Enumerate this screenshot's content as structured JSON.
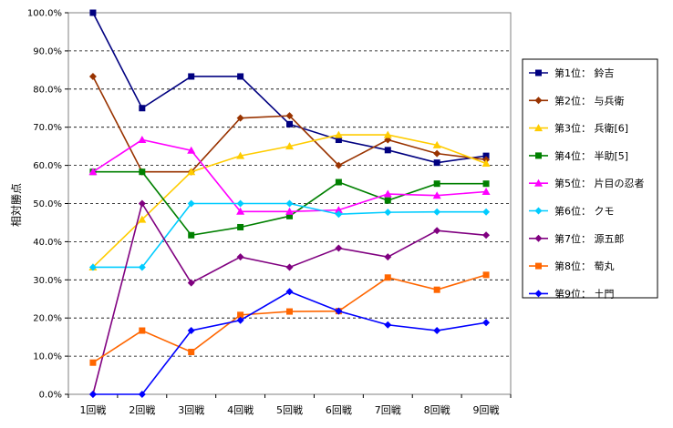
{
  "chart_data": {
    "type": "line",
    "ylabel": "相対勝点",
    "xlabel": "",
    "ylim": [
      0,
      100
    ],
    "y_ticks": [
      "0.0%",
      "10.0%",
      "20.0%",
      "30.0%",
      "40.0%",
      "50.0%",
      "60.0%",
      "70.0%",
      "80.0%",
      "90.0%",
      "100.0%"
    ],
    "categories": [
      "1回戦",
      "2回戦",
      "3回戦",
      "4回戦",
      "5回戦",
      "6回戦",
      "7回戦",
      "8回戦",
      "9回戦"
    ],
    "grid": "horizontal dashed",
    "legend_position": "right",
    "series": [
      {
        "name": "第1位： 鈴吉",
        "color": "#000080",
        "marker": "square",
        "values": [
          100,
          75,
          83.3,
          83.3,
          70.8,
          66.7,
          64,
          60.7,
          62.5
        ]
      },
      {
        "name": "第2位： 与兵衛",
        "color": "#993300",
        "marker": "diamond",
        "values": [
          83.3,
          58.3,
          58.3,
          72.4,
          73,
          60,
          66.7,
          63.1,
          61.5
        ]
      },
      {
        "name": "第3位： 兵衛[6]",
        "color": "#ffcc00",
        "marker": "triangle",
        "values": [
          33.3,
          45.8,
          58.3,
          62.5,
          65,
          68,
          68,
          65.3,
          60.5
        ]
      },
      {
        "name": "第4位： 半助[5]",
        "color": "#008000",
        "marker": "square",
        "values": [
          58.3,
          58.3,
          41.7,
          43.8,
          46.7,
          55.6,
          50.8,
          55.2,
          55.2
        ]
      },
      {
        "name": "第5位： 片目の忍者",
        "color": "#ff00ff",
        "marker": "triangle",
        "values": [
          58.3,
          66.7,
          63.9,
          47.9,
          47.9,
          48.3,
          52.5,
          52.1,
          53.1
        ]
      },
      {
        "name": "第6位： クモ",
        "color": "#00ccff",
        "marker": "diamond",
        "values": [
          33.3,
          33.3,
          50,
          50,
          50,
          47.2,
          47.7,
          47.8,
          47.8
        ]
      },
      {
        "name": "第7位： 源五郎",
        "color": "#800080",
        "marker": "diamond",
        "values": [
          0,
          50,
          29.2,
          36,
          33.3,
          38.3,
          36,
          42.9,
          41.7
        ]
      },
      {
        "name": "第8位： 萄丸",
        "color": "#ff6600",
        "marker": "square",
        "values": [
          8.3,
          16.7,
          11.1,
          20.8,
          21.7,
          21.8,
          30.6,
          27.4,
          31.3
        ]
      },
      {
        "name": "第9位： 土門",
        "color": "#0000ff",
        "marker": "diamond",
        "values": [
          0,
          0,
          16.7,
          19.4,
          26.9,
          21.8,
          18.2,
          16.7,
          18.8
        ]
      }
    ]
  }
}
